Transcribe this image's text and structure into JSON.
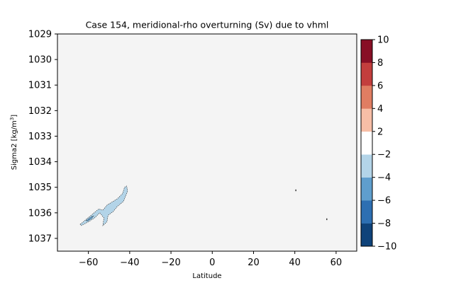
{
  "chart_data": {
    "type": "contour",
    "title": "Case 154, meridional-rho overturning (Sv) due to vhml",
    "xlabel": "Latitude",
    "ylabel": "Sigma2 [kg/m",
    "ylabel_sup": "3",
    "ylabel_end": "]",
    "xlim": [
      -75,
      70
    ],
    "ylim": [
      1037.5,
      1029
    ],
    "y_inverted": true,
    "xticks": [
      -60,
      -40,
      -20,
      0,
      20,
      40,
      60
    ],
    "xtick_labels": [
      "−60",
      "−40",
      "−20",
      "0",
      "20",
      "40",
      "60"
    ],
    "yticks": [
      1029,
      1030,
      1031,
      1032,
      1033,
      1034,
      1035,
      1036,
      1037
    ],
    "ytick_labels": [
      "1029",
      "1030",
      "1031",
      "1032",
      "1033",
      "1034",
      "1035",
      "1036",
      "1037"
    ],
    "background_color": "#f4f4f4",
    "colorbar": {
      "levels": [
        -10,
        -8,
        -6,
        -4,
        -2,
        2,
        4,
        6,
        8,
        10
      ],
      "labels": [
        "−10",
        "−8",
        "−6",
        "−4",
        "−2",
        "2",
        "4",
        "6",
        "8",
        "10"
      ],
      "colors": [
        "#0f437a",
        "#2d6fb2",
        "#5f9ecd",
        "#b3d4e8",
        "#ffffff",
        "#f7bea6",
        "#e07d62",
        "#c33e3d",
        "#880f25"
      ]
    },
    "features": [
      {
        "name": "negative-overturning-cell",
        "level_range": [
          -4,
          -2
        ],
        "color": "#b3d4e8",
        "outline": [
          [
            -64,
            1036.45
          ],
          [
            -61,
            1036.25
          ],
          [
            -58,
            1036.05
          ],
          [
            -55,
            1035.85
          ],
          [
            -53,
            1035.9
          ],
          [
            -51,
            1035.7
          ],
          [
            -48,
            1035.55
          ],
          [
            -46,
            1035.45
          ],
          [
            -43.5,
            1035.25
          ],
          [
            -42.5,
            1035.0
          ],
          [
            -41.5,
            1034.95
          ],
          [
            -41,
            1035.15
          ],
          [
            -43,
            1035.55
          ],
          [
            -46,
            1035.75
          ],
          [
            -48,
            1035.95
          ],
          [
            -50.5,
            1036.1
          ],
          [
            -51,
            1036.35
          ],
          [
            -53,
            1036.5
          ],
          [
            -52.5,
            1036.2
          ],
          [
            -54.5,
            1036.0
          ],
          [
            -57,
            1036.2
          ],
          [
            -60,
            1036.35
          ],
          [
            -63.5,
            1036.5
          ]
        ]
      },
      {
        "name": "negative-core",
        "level_range": [
          -6,
          -4
        ],
        "color": "#5f9ecd",
        "outline": [
          [
            -61,
            1036.3
          ],
          [
            -58.5,
            1036.15
          ],
          [
            -57.5,
            1036.12
          ],
          [
            -58.5,
            1036.22
          ],
          [
            -60.5,
            1036.33
          ]
        ]
      }
    ],
    "points": [
      {
        "name": "dot-1",
        "x": 40.5,
        "y": 1035.12
      },
      {
        "name": "dot-2",
        "x": 55.5,
        "y": 1036.25
      }
    ]
  }
}
